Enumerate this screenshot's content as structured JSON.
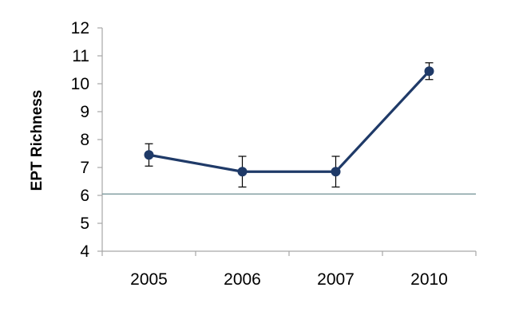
{
  "chart_data": {
    "type": "line",
    "title": "",
    "xlabel": "",
    "ylabel": "EPT Richness",
    "categories": [
      "2005",
      "2006",
      "2007",
      "2010"
    ],
    "series": [
      {
        "values": [
          7.45,
          6.85,
          6.85,
          10.45
        ],
        "error": [
          0.4,
          0.55,
          0.55,
          0.3
        ]
      }
    ],
    "reference_line": 6.05,
    "ylim": [
      4,
      12
    ],
    "yticks": [
      4,
      5,
      6,
      7,
      8,
      9,
      10,
      11,
      12
    ],
    "grid": false,
    "legend": "none",
    "colors": {
      "series": "#1f3a68",
      "reference_line": "#6f8f93",
      "axis": "#a6a6a6",
      "text": "#000000"
    }
  }
}
